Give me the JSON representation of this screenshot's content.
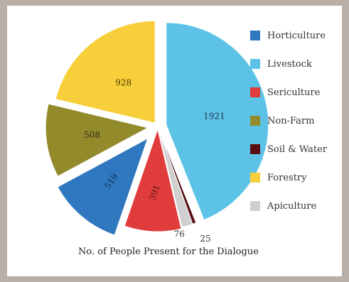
{
  "chart_data": {
    "type": "pie",
    "title": "No. of People Present for the Dialogue",
    "categories": [
      "Horticulture",
      "Livestock",
      "Sericulture",
      "Non-Farm",
      "Soil & Water",
      "Forestry",
      "Apiculture"
    ],
    "values": [
      519,
      1921,
      391,
      508,
      25,
      928,
      76
    ],
    "colors": [
      "#2f78bf",
      "#5cc3e6",
      "#e03c3c",
      "#938a2c",
      "#5a0f12",
      "#f7cf3a",
      "#cfcfcf"
    ],
    "slices": [
      {
        "label": "Livestock",
        "value": 1921,
        "color": "#5cc3e6"
      },
      {
        "label": "Soil & Water",
        "value": 25,
        "color": "#5a0f12"
      },
      {
        "label": "Apiculture",
        "value": 76,
        "color": "#cfcfcf"
      },
      {
        "label": "Sericulture",
        "value": 391,
        "color": "#e03c3c"
      },
      {
        "label": "Horticulture",
        "value": 519,
        "color": "#2f78bf"
      },
      {
        "label": "Non-Farm",
        "value": 508,
        "color": "#938a2c"
      },
      {
        "label": "Forestry",
        "value": 928,
        "color": "#f7cf3a"
      }
    ],
    "legend_position": "right"
  }
}
